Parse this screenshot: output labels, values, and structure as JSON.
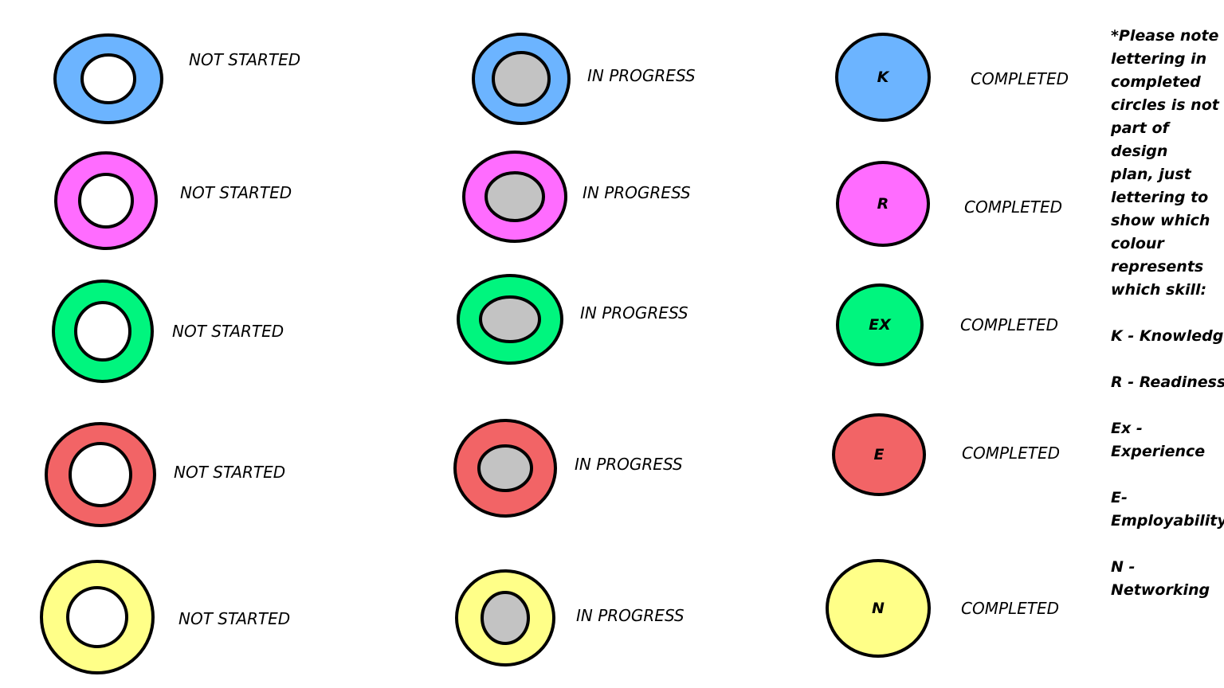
{
  "colors": {
    "knowledge": "#6cb4ff",
    "readiness": "#ff6cff",
    "experience": "#00f57e",
    "employability": "#f26466",
    "networking": "#ffff88",
    "progress_fill": "#c3c3c3",
    "empty_fill": "#ffffff",
    "outline": "#000000"
  },
  "labels": {
    "not_started": "NOT STARTED",
    "in_progress": "IN PROGRESS",
    "completed": "COMPLETED"
  },
  "rows": [
    {
      "skill": "knowledge",
      "color": "#6cb4ff",
      "letter": "K"
    },
    {
      "skill": "readiness",
      "color": "#ff6cff",
      "letter": "R"
    },
    {
      "skill": "experience",
      "color": "#00f57e",
      "letter": "EX"
    },
    {
      "skill": "employability",
      "color": "#f26466",
      "letter": "E"
    },
    {
      "skill": "networking",
      "color": "#ffff88",
      "letter": "N"
    }
  ],
  "note": {
    "intro_lines": [
      "*Please note",
      "lettering in",
      "completed",
      "circles is not",
      "part of design",
      "plan, just",
      "lettering to",
      "show which",
      "colour",
      "represents",
      "which skill:"
    ],
    "legend": [
      {
        "lines": [
          "K - Knowledge"
        ]
      },
      {
        "lines": [
          "R - Readiness"
        ]
      },
      {
        "lines": [
          "Ex -",
          "Experience"
        ]
      },
      {
        "lines": [
          "E-",
          "Employability"
        ]
      },
      {
        "lines": [
          "N -",
          "Networking"
        ]
      }
    ]
  }
}
